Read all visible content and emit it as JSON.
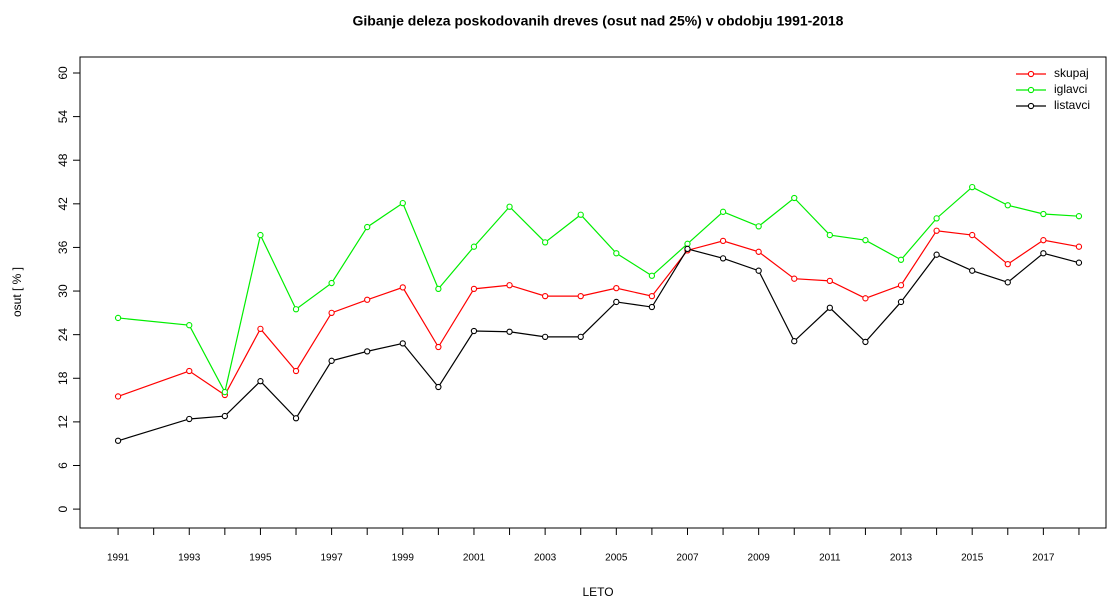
{
  "chart_data": {
    "type": "line",
    "title": "Gibanje deleza poskodovanih dreves (osut nad 25%) v obdobju 1991-2018",
    "x_label": "LETO",
    "y_label": "osut [ % ]",
    "x": [
      1991,
      1993,
      1994,
      1995,
      1996,
      1997,
      1998,
      1999,
      2000,
      2001,
      2002,
      2003,
      2004,
      2005,
      2006,
      2007,
      2008,
      2009,
      2010,
      2011,
      2012,
      2013,
      2014,
      2015,
      2016,
      2017,
      2018
    ],
    "series": [
      {
        "name": "skupaj",
        "color": "#ff0000",
        "values": [
          15.5,
          19.0,
          15.7,
          24.8,
          19.0,
          27.0,
          28.8,
          30.5,
          22.3,
          30.3,
          30.8,
          29.3,
          29.3,
          30.4,
          29.3,
          35.6,
          36.9,
          35.4,
          31.7,
          31.4,
          29.0,
          30.8,
          38.3,
          37.7,
          33.7,
          37.0,
          36.1
        ]
      },
      {
        "name": "iglavci",
        "color": "#00ee00",
        "values": [
          26.3,
          25.3,
          16.1,
          37.7,
          27.5,
          31.1,
          38.8,
          42.1,
          30.3,
          36.1,
          41.6,
          36.7,
          40.5,
          35.2,
          32.1,
          36.5,
          40.9,
          38.9,
          42.8,
          37.7,
          37.0,
          34.3,
          40.0,
          44.3,
          41.8,
          40.6,
          40.3
        ]
      },
      {
        "name": "listavci",
        "color": "#000000",
        "values": [
          9.4,
          12.4,
          12.8,
          17.6,
          12.5,
          20.4,
          21.7,
          22.8,
          16.8,
          24.5,
          24.4,
          23.7,
          23.7,
          28.5,
          27.8,
          35.8,
          34.5,
          32.8,
          23.1,
          27.7,
          23.0,
          28.5,
          35.0,
          32.8,
          31.2,
          35.2,
          33.9
        ]
      }
    ],
    "xlim": [
      1989.93,
      2018.76
    ],
    "xticks": [
      1991,
      1993,
      1995,
      1997,
      1999,
      2001,
      2003,
      2005,
      2007,
      2009,
      2011,
      2013,
      2015,
      2017
    ],
    "xminor_ticks": [
      1992,
      1994,
      1996,
      1998,
      2000,
      2002,
      2004,
      2006,
      2008,
      2010,
      2012,
      2014,
      2016,
      2018
    ],
    "ylim": [
      -2.6,
      62.2
    ],
    "yticks": [
      0,
      6,
      12,
      18,
      24,
      30,
      36,
      42,
      48,
      54,
      60
    ],
    "legend": "top-right"
  }
}
